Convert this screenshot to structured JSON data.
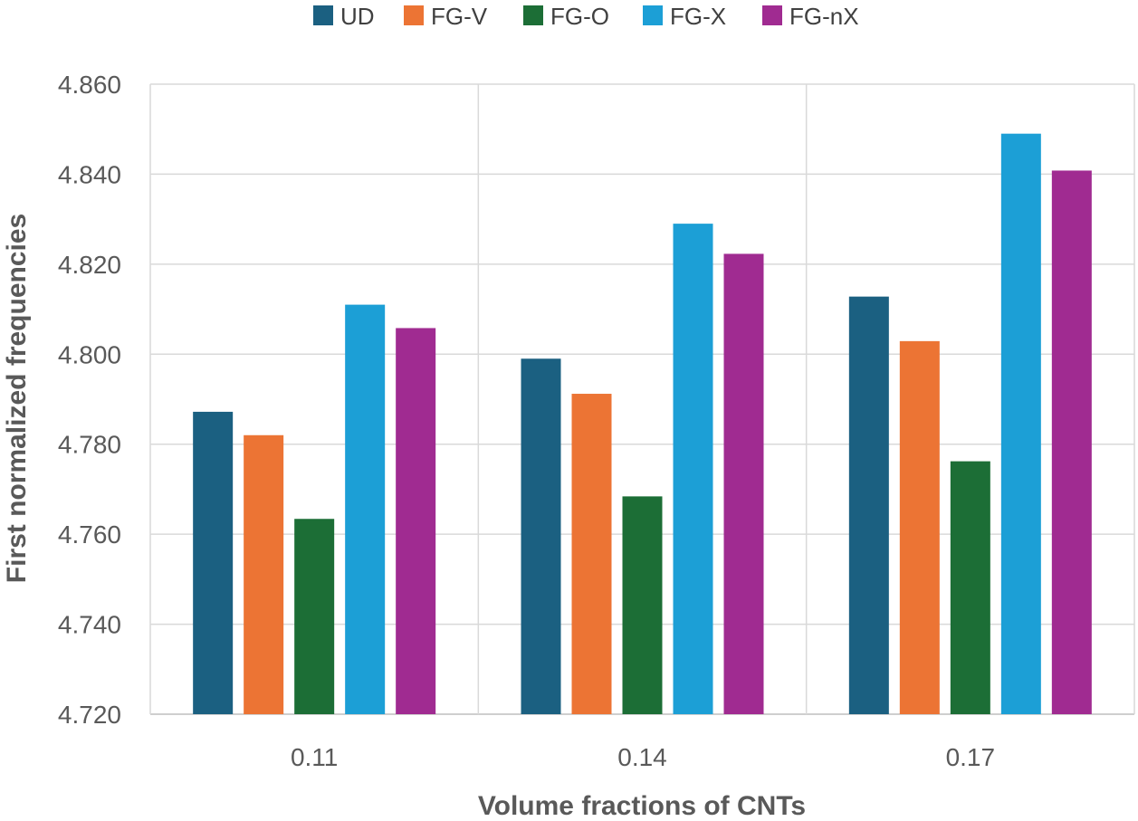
{
  "chart_data": {
    "type": "bar",
    "title": "",
    "xlabel": "Volume fractions of CNTs",
    "ylabel": "First normalized frequencies",
    "categories": [
      "0.11",
      "0.14",
      "0.17"
    ],
    "ylim": [
      4.72,
      4.86
    ],
    "yticks": [
      "4.720",
      "4.740",
      "4.760",
      "4.780",
      "4.800",
      "4.820",
      "4.840",
      "4.860"
    ],
    "ytick_values": [
      4.72,
      4.74,
      4.76,
      4.78,
      4.8,
      4.82,
      4.84,
      4.86
    ],
    "grid": true,
    "legend_position": "top",
    "series": [
      {
        "name": "UD",
        "color": "#1b6081",
        "values": [
          4.7872,
          4.799,
          4.8128
        ]
      },
      {
        "name": "FG-V",
        "color": "#ec7434",
        "values": [
          4.782,
          4.7912,
          4.8029
        ]
      },
      {
        "name": "FG-O",
        "color": "#1c6e36",
        "values": [
          4.7634,
          4.7684,
          4.7762
        ]
      },
      {
        "name": "FG-X",
        "color": "#1c9fd6",
        "values": [
          4.811,
          4.829,
          4.849
        ]
      },
      {
        "name": "FG-nX",
        "color": "#a02b91",
        "values": [
          4.8058,
          4.8223,
          4.8408
        ]
      }
    ]
  }
}
